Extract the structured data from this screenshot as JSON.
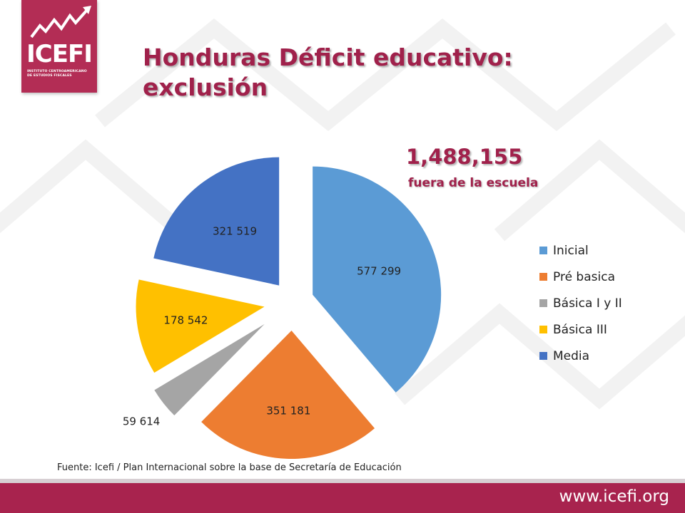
{
  "logo": {
    "name": "ICEFI",
    "subtitle_line1": "INSTITUTO CENTROAMERICANO",
    "subtitle_line2": "DE ESTUDIOS FISCALES"
  },
  "title_line1": "Honduras Déficit educativo:",
  "title_line2": "exclusión",
  "total_value": "1,488,155",
  "total_caption": "fuera de la escuela",
  "source": "Fuente: Icefi / Plan Internacional sobre la base de Secretaría de Educación",
  "website": "www.icefi.org",
  "chart_data": {
    "type": "pie",
    "exploded": true,
    "categories": [
      "Inicial",
      "Pré basica",
      "Básica I y II",
      "Básica III",
      "Media"
    ],
    "values": [
      577299,
      351181,
      59614,
      178542,
      321519
    ],
    "labels": [
      "577 299",
      "351 181",
      "59 614",
      "178 542",
      "321 519"
    ],
    "colors": [
      "#5b9bd5",
      "#ed7d31",
      "#a5a5a5",
      "#ffc000",
      "#4472c4"
    ],
    "legend_position": "right"
  }
}
